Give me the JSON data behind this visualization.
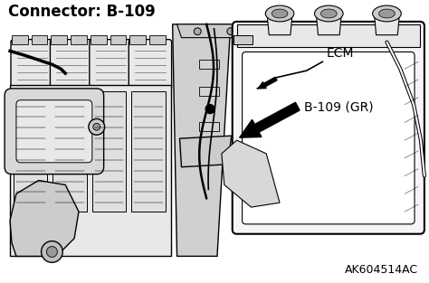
{
  "title": "Connector: B-109",
  "label_ecm": "ECM",
  "label_b109": "B-109 (GR)",
  "label_code": "AK604514AC",
  "bg_color": "#ffffff",
  "title_fontsize": 12,
  "label_fontsize": 10,
  "code_fontsize": 9,
  "fig_width": 4.74,
  "fig_height": 3.13,
  "dpi": 100,
  "line_color": "#000000",
  "light_gray": "#e8e8e8",
  "mid_gray": "#cccccc",
  "dark_gray": "#999999",
  "white": "#ffffff"
}
